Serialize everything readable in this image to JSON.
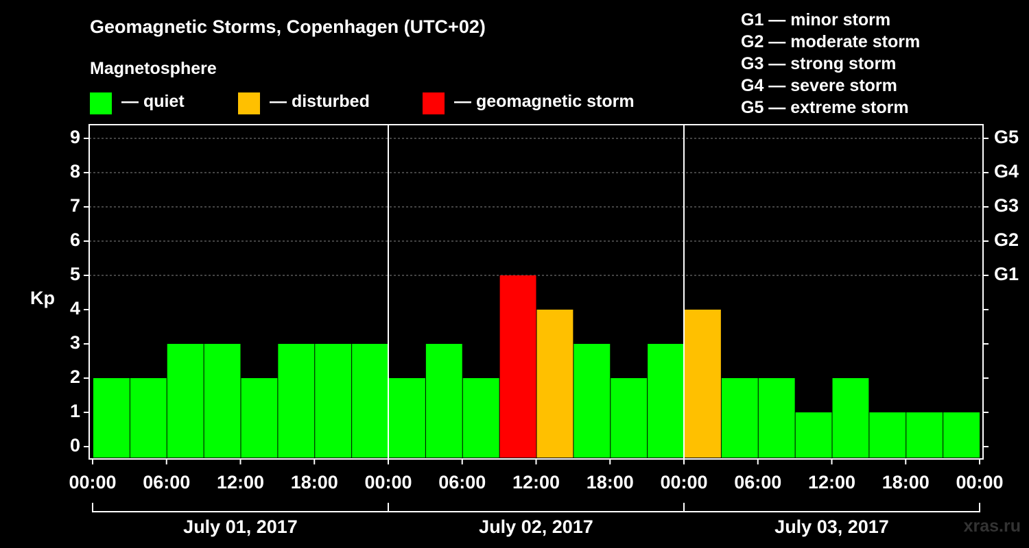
{
  "title": "Geomagnetic Storms, Copenhagen (UTC+02)",
  "subtitle": "Magnetosphere",
  "legend": [
    {
      "label": "— quiet",
      "color": "#00ff00"
    },
    {
      "label": "— disturbed",
      "color": "#ffc000"
    },
    {
      "label": "— geomagnetic storm",
      "color": "#ff0000"
    }
  ],
  "g_scale": [
    "G1 — minor storm",
    "G2 — moderate storm",
    "G3 — strong storm",
    "G4 — severe storm",
    "G5 — extreme storm"
  ],
  "watermark": "xras.ru",
  "chart_data": {
    "type": "bar",
    "ylabel": "Kp",
    "ylim": [
      0,
      9
    ],
    "y_ticks": [
      "0",
      "1",
      "2",
      "3",
      "4",
      "5",
      "6",
      "7",
      "8",
      "9"
    ],
    "right_ticks": [
      {
        "value": 5,
        "label": "G1"
      },
      {
        "value": 6,
        "label": "G2"
      },
      {
        "value": 7,
        "label": "G3"
      },
      {
        "value": 8,
        "label": "G4"
      },
      {
        "value": 9,
        "label": "G5"
      }
    ],
    "x_tick_labels": [
      "00:00",
      "06:00",
      "12:00",
      "18:00",
      "00:00",
      "06:00",
      "12:00",
      "18:00",
      "00:00",
      "06:00",
      "12:00",
      "18:00",
      "00:00"
    ],
    "days": [
      "July 01, 2017",
      "July 02, 2017",
      "July 03, 2017"
    ],
    "bars": [
      {
        "start_hour": 0,
        "end_hour": 3,
        "kp": 2,
        "level": "quiet"
      },
      {
        "start_hour": 3,
        "end_hour": 6,
        "kp": 2,
        "level": "quiet"
      },
      {
        "start_hour": 6,
        "end_hour": 9,
        "kp": 3,
        "level": "quiet"
      },
      {
        "start_hour": 9,
        "end_hour": 12,
        "kp": 3,
        "level": "quiet"
      },
      {
        "start_hour": 12,
        "end_hour": 15,
        "kp": 2,
        "level": "quiet"
      },
      {
        "start_hour": 15,
        "end_hour": 18,
        "kp": 3,
        "level": "quiet"
      },
      {
        "start_hour": 18,
        "end_hour": 21,
        "kp": 3,
        "level": "quiet"
      },
      {
        "start_hour": 21,
        "end_hour": 24,
        "kp": 3,
        "level": "quiet"
      },
      {
        "start_hour": 24,
        "end_hour": 27,
        "kp": 2,
        "level": "quiet"
      },
      {
        "start_hour": 27,
        "end_hour": 30,
        "kp": 3,
        "level": "quiet"
      },
      {
        "start_hour": 30,
        "end_hour": 33,
        "kp": 2,
        "level": "quiet"
      },
      {
        "start_hour": 33,
        "end_hour": 36,
        "kp": 5,
        "level": "storm"
      },
      {
        "start_hour": 36,
        "end_hour": 39,
        "kp": 4,
        "level": "disturbed"
      },
      {
        "start_hour": 39,
        "end_hour": 42,
        "kp": 3,
        "level": "quiet"
      },
      {
        "start_hour": 42,
        "end_hour": 45,
        "kp": 2,
        "level": "quiet"
      },
      {
        "start_hour": 45,
        "end_hour": 48,
        "kp": 3,
        "level": "quiet"
      },
      {
        "start_hour": 48,
        "end_hour": 51,
        "kp": 4,
        "level": "disturbed"
      },
      {
        "start_hour": 51,
        "end_hour": 54,
        "kp": 2,
        "level": "quiet"
      },
      {
        "start_hour": 54,
        "end_hour": 57,
        "kp": 2,
        "level": "quiet"
      },
      {
        "start_hour": 57,
        "end_hour": 60,
        "kp": 1,
        "level": "quiet"
      },
      {
        "start_hour": 60,
        "end_hour": 63,
        "kp": 2,
        "level": "quiet"
      },
      {
        "start_hour": 63,
        "end_hour": 66,
        "kp": 1,
        "level": "quiet"
      },
      {
        "start_hour": 66,
        "end_hour": 69,
        "kp": 1,
        "level": "quiet"
      },
      {
        "start_hour": 69,
        "end_hour": 72,
        "kp": 1,
        "level": "quiet"
      }
    ],
    "colors": {
      "quiet": "#00ff00",
      "disturbed": "#ffc000",
      "storm": "#ff0000"
    }
  }
}
